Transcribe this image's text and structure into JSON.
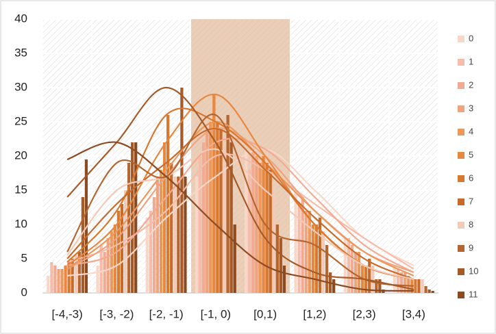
{
  "chart_data": {
    "type": "bar",
    "categories": [
      "[-4,-3)",
      "[-3, -2)",
      "[-2, -1)",
      "[-1, 0)",
      "[0,1)",
      "[1,2)",
      "[2,3)",
      "[3,4)"
    ],
    "series": [
      {
        "name": "0",
        "color": "#f9d7c8",
        "values": [
          2.5,
          4,
          11,
          17,
          21,
          15,
          8,
          4
        ]
      },
      {
        "name": "1",
        "color": "#f6bcaa",
        "values": [
          4.5,
          7,
          12,
          20,
          18,
          13,
          8,
          3.5
        ]
      },
      {
        "name": "2",
        "color": "#f2aa92",
        "values": [
          4,
          6,
          14,
          22,
          21,
          14,
          7,
          3
        ]
      },
      {
        "name": "3",
        "color": "#efa37f",
        "values": [
          3.5,
          8,
          17,
          24,
          20,
          12,
          6,
          3
        ]
      },
      {
        "name": "4",
        "color": "#ec975c",
        "values": [
          3.5,
          9,
          18,
          25,
          19,
          12,
          6,
          2.5
        ]
      },
      {
        "name": "5",
        "color": "#e8873f",
        "values": [
          4,
          10,
          22,
          29,
          20,
          10,
          4,
          2
        ]
      },
      {
        "name": "6",
        "color": "#d9782f",
        "values": [
          4.5,
          12,
          26,
          25,
          19,
          10,
          4,
          2
        ]
      },
      {
        "name": "7",
        "color": "#c86b2a",
        "values": [
          5,
          13,
          19,
          24,
          18,
          11,
          5,
          2
        ]
      },
      {
        "name": "8",
        "color": "#f3cab8",
        "values": [
          5.5,
          15,
          17,
          21,
          15,
          9,
          4,
          2
        ]
      },
      {
        "name": "9",
        "color": "#b5652f",
        "values": [
          6,
          19,
          17,
          26,
          10,
          7,
          2,
          1
        ]
      },
      {
        "name": "10",
        "color": "#a55a28",
        "values": [
          14,
          22,
          30,
          22,
          8,
          3,
          2,
          0.5
        ]
      },
      {
        "name": "11",
        "color": "#8c4a20",
        "values": [
          19.5,
          22,
          17,
          10,
          4,
          2,
          0.5,
          0.3
        ]
      }
    ],
    "ylim": [
      0,
      40
    ],
    "yticks": [
      0,
      5,
      10,
      15,
      20,
      25,
      30,
      35,
      40
    ],
    "grid": true,
    "legend": "right"
  }
}
